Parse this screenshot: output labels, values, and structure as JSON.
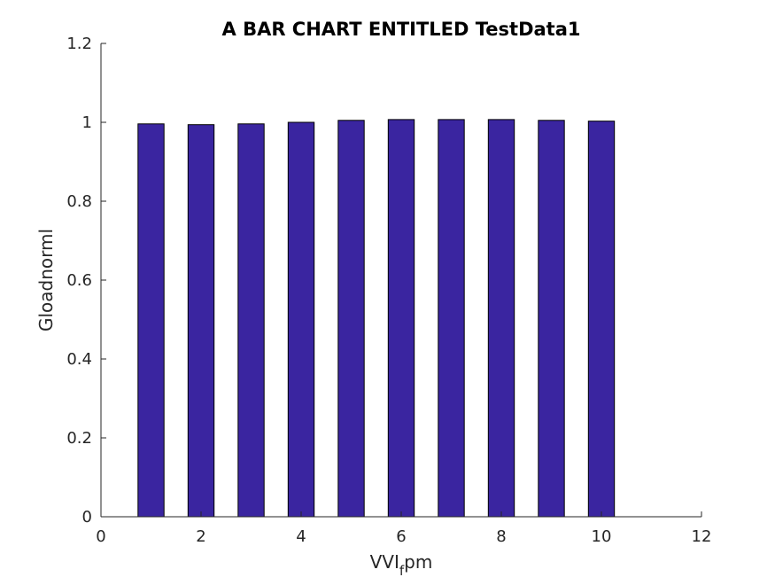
{
  "chart_data": {
    "type": "bar",
    "title": "A BAR CHART ENTITLED TestData1",
    "xlabel": {
      "main": "VVI",
      "sub": "f",
      "suffix": "pm"
    },
    "ylabel": "Gloadnorml",
    "x": [
      1,
      2,
      3,
      4,
      5,
      6,
      7,
      8,
      9,
      10
    ],
    "values": [
      0.996,
      0.994,
      0.996,
      1.0,
      1.005,
      1.007,
      1.007,
      1.007,
      1.005,
      1.003
    ],
    "xlim": [
      0,
      12
    ],
    "ylim": [
      0,
      1.2
    ],
    "xticks": [
      0,
      2,
      4,
      6,
      8,
      10,
      12
    ],
    "yticks": [
      0,
      0.2,
      0.4,
      0.6,
      0.8,
      1,
      1.2
    ],
    "xtick_labels": [
      "0",
      "2",
      "4",
      "6",
      "8",
      "10",
      "12"
    ],
    "ytick_labels": [
      "0",
      "0.2",
      "0.4",
      "0.6",
      "0.8",
      "1",
      "1.2"
    ],
    "grid": false,
    "bar_color": "#3a25a0",
    "edge_color": "#000000"
  }
}
